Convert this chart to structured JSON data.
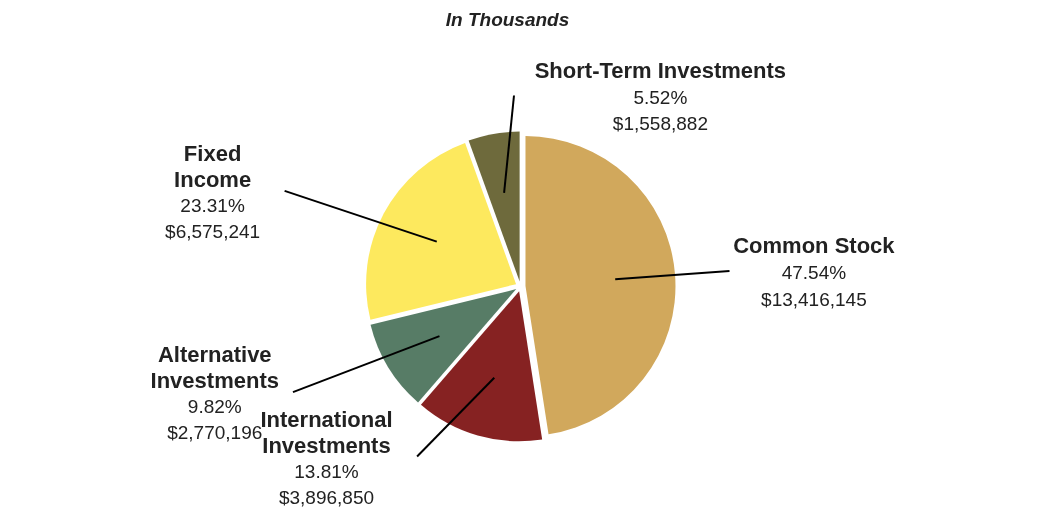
{
  "chart_data": {
    "type": "pie",
    "title": "In Thousands",
    "categories": [
      "Short-Term Investments",
      "Common Stock",
      "International Investments",
      "Alternative Investments",
      "Fixed Income"
    ],
    "values": [
      1558882,
      13416145,
      3896850,
      2770196,
      6575241
    ],
    "colors": [
      "#6e6a3c",
      "#d1a85c",
      "#862222",
      "#577c66",
      "#fde95e"
    ],
    "value_labels": [
      "5.52%\n$1,558,882",
      "47.54%\n$13,416,145",
      "13.81%\n$3,896,850",
      "9.82%\n$2,770,196",
      "23.31%\n$6,575,241"
    ]
  }
}
